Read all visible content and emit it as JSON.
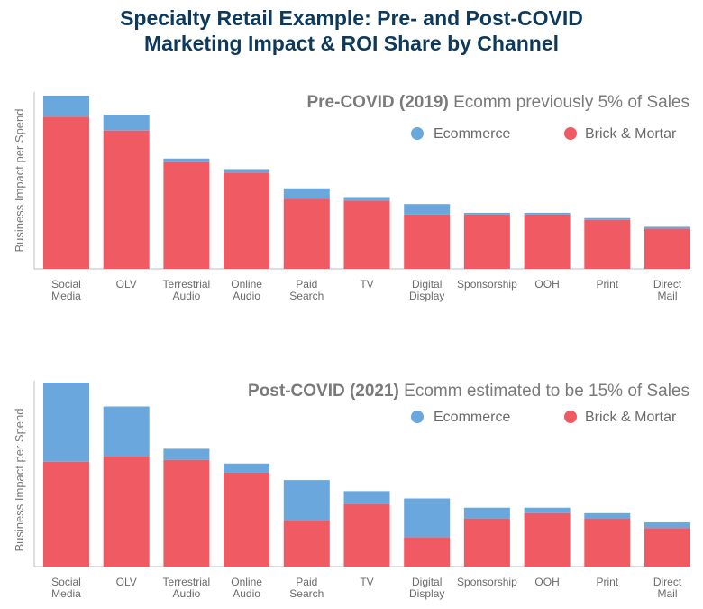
{
  "title_line1": "Specialty Retail Example: Pre- and Post-COVID",
  "title_line2": "Marketing Impact & ROI Share by Channel",
  "colors": {
    "ecommerce": "#6aa7dc",
    "brick_mortar": "#f05a63"
  },
  "chart_data": [
    {
      "type": "bar",
      "stacked": true,
      "title_bold": "Pre-COVID (2019)",
      "title_rest": "Ecomm previously 5% of Sales",
      "ylabel": "Business Impact per Spend",
      "ylim": [
        0,
        100
      ],
      "legend_position": "top-right",
      "categories": [
        [
          "Social",
          "Media"
        ],
        [
          "OLV"
        ],
        [
          "Terrestrial",
          "Audio"
        ],
        [
          "Online",
          "Audio"
        ],
        [
          "Paid",
          "Search"
        ],
        [
          "TV"
        ],
        [
          "Digital",
          "Display"
        ],
        [
          "Sponsorship"
        ],
        [
          "OOH"
        ],
        [
          "Print"
        ],
        [
          "Direct",
          "Mail"
        ]
      ],
      "series": [
        {
          "name": "Brick & Mortar",
          "key": "brick_mortar",
          "values": [
            87,
            79,
            61,
            55,
            40,
            39,
            31,
            31,
            31,
            28,
            23
          ]
        },
        {
          "name": "Ecommerce",
          "key": "ecommerce",
          "values": [
            12,
            9,
            2,
            2,
            6,
            2,
            6,
            1,
            1,
            1,
            1
          ]
        }
      ]
    },
    {
      "type": "bar",
      "stacked": true,
      "title_bold": "Post-COVID (2021)",
      "title_rest": "Ecomm estimated to be 15% of Sales",
      "ylabel": "Business Impact per Spend",
      "ylim": [
        0,
        100
      ],
      "legend_position": "top-right",
      "categories": [
        [
          "Social",
          "Media"
        ],
        [
          "OLV"
        ],
        [
          "Terrestrial",
          "Audio"
        ],
        [
          "Online",
          "Audio"
        ],
        [
          "Paid",
          "Search"
        ],
        [
          "TV"
        ],
        [
          "Digital",
          "Display"
        ],
        [
          "Sponsorship"
        ],
        [
          "OOH"
        ],
        [
          "Print"
        ],
        [
          "Direct",
          "Mail"
        ]
      ],
      "series": [
        {
          "name": "Brick & Mortar",
          "key": "brick_mortar",
          "values": [
            57,
            60,
            58,
            51,
            25,
            34,
            16,
            26,
            29,
            26,
            21
          ]
        },
        {
          "name": "Ecommerce",
          "key": "ecommerce",
          "values": [
            43,
            27,
            6,
            5,
            22,
            7,
            21,
            6,
            3,
            3,
            3
          ]
        }
      ]
    }
  ]
}
